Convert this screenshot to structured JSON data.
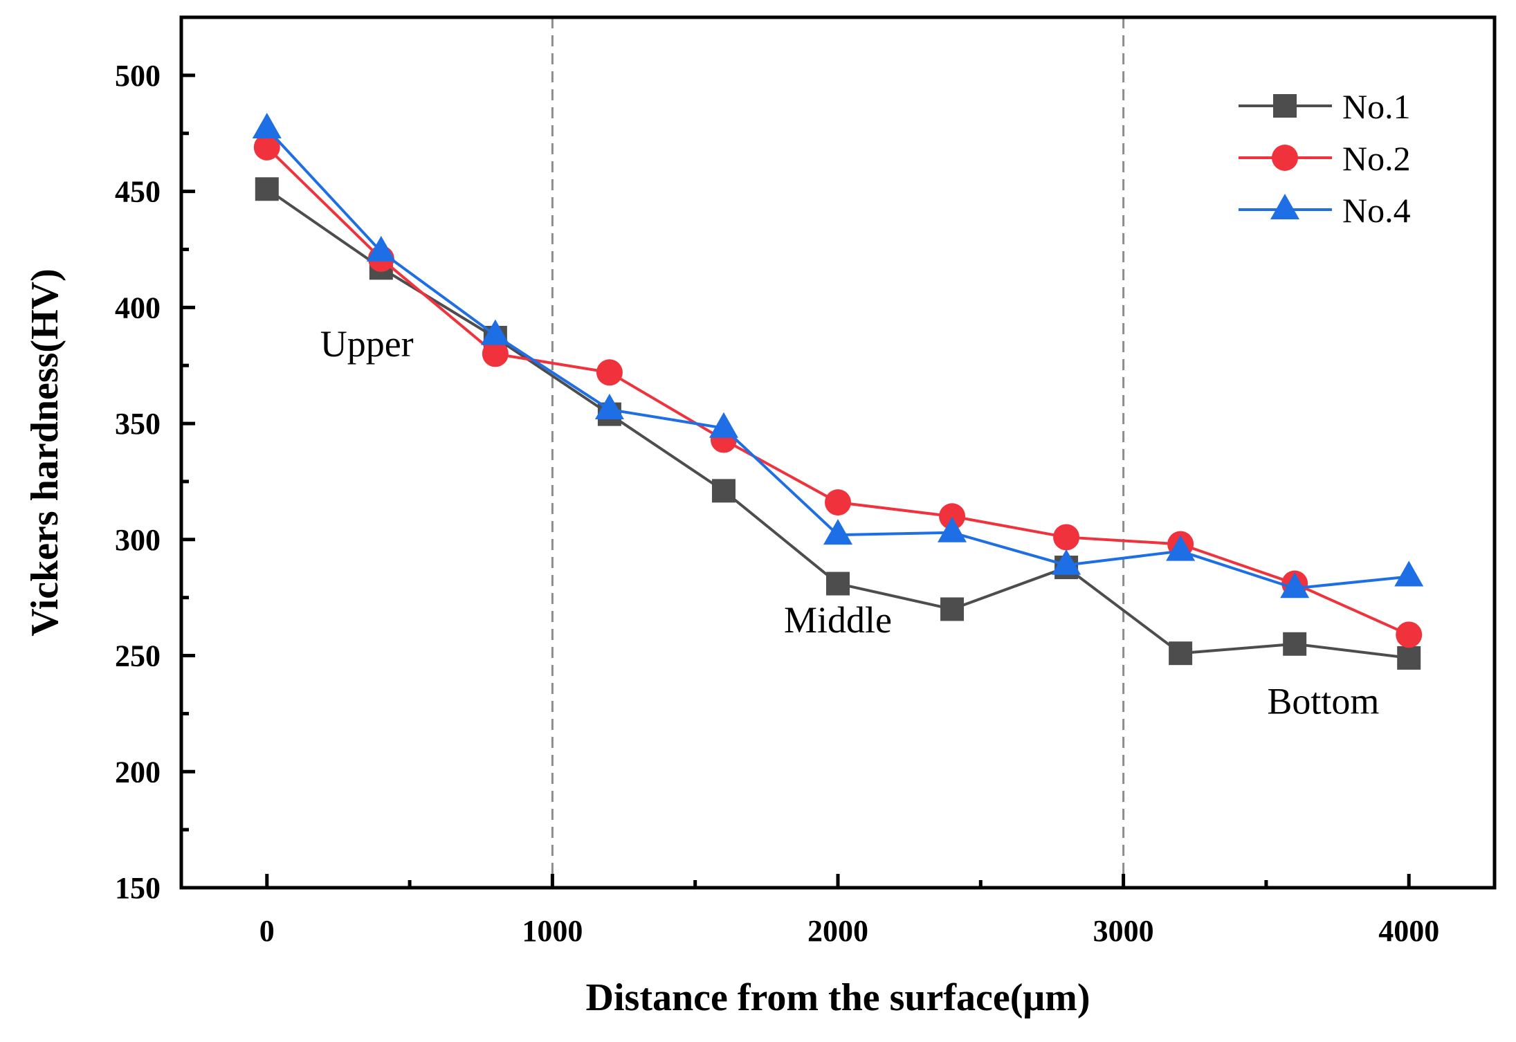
{
  "chart_data": {
    "type": "line",
    "title": "",
    "xlabel": "Distance from the surface(μm)",
    "ylabel": "Vickers hardness(HV)",
    "xlim": [
      -300,
      4300
    ],
    "ylim": [
      150,
      525
    ],
    "xticks": [
      0,
      1000,
      2000,
      3000,
      4000
    ],
    "xtick_labels": [
      "0",
      "1000",
      "2000",
      "3000",
      "4000"
    ],
    "yticks": [
      150,
      200,
      250,
      300,
      350,
      400,
      450,
      500
    ],
    "ytick_labels": [
      "150",
      "200",
      "250",
      "300",
      "350",
      "400",
      "450",
      "500"
    ],
    "x": [
      0,
      400,
      800,
      1200,
      1600,
      2000,
      2400,
      2800,
      3200,
      3600,
      4000
    ],
    "series": [
      {
        "name": "No.1",
        "color": "#4d4d4d",
        "marker": "square",
        "values": [
          451,
          417,
          387,
          354,
          321,
          281,
          270,
          288,
          251,
          255,
          249
        ]
      },
      {
        "name": "No.2",
        "color": "#f0323c",
        "marker": "circle",
        "values": [
          469,
          421,
          380,
          372,
          343,
          316,
          310,
          301,
          298,
          281,
          259
        ]
      },
      {
        "name": "No.4",
        "color": "#1e6ee6",
        "marker": "triangle",
        "values": [
          477,
          424,
          388,
          356,
          348,
          302,
          303,
          289,
          295,
          279,
          284
        ]
      }
    ],
    "vlines": [
      1000,
      3000
    ],
    "annotations": [
      {
        "text": "Upper",
        "x": 350,
        "y": 379
      },
      {
        "text": "Middle",
        "x": 2000,
        "y": 260
      },
      {
        "text": "Bottom",
        "x": 3700,
        "y": 225
      }
    ],
    "legend": "top-right",
    "grid": false
  }
}
